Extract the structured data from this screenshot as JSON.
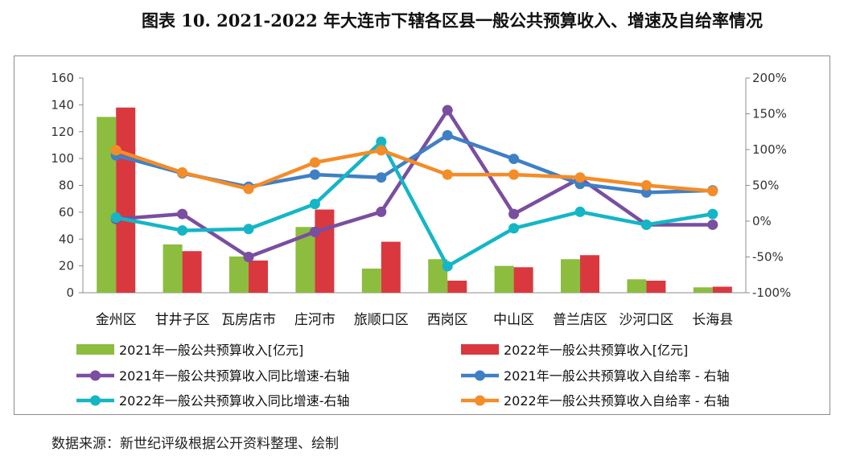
{
  "title": "图表 10. 2021-2022 年大连市下辖各区县一般公共预算收入、增速及自给率情况",
  "source": "数据来源：新世纪评级根据公开资料整理、绘制",
  "chart_data": {
    "type": "bar",
    "categories": [
      "金州区",
      "甘井子区",
      "瓦房店市",
      "庄河市",
      "旅顺口区",
      "西岗区",
      "中山区",
      "普兰店区",
      "沙河口区",
      "长海县"
    ],
    "y_left": {
      "min": 0,
      "max": 160,
      "ticks": [
        0,
        20,
        40,
        60,
        80,
        100,
        120,
        140,
        160
      ]
    },
    "y_right": {
      "min": -100,
      "max": 200,
      "ticks": [
        -100,
        -50,
        0,
        50,
        100,
        150,
        200
      ],
      "tick_labels": [
        "-100%",
        "-50%",
        "0%",
        "50%",
        "100%",
        "150%",
        "200%"
      ]
    },
    "grid": false,
    "legend_position": "bottom",
    "bar_series": [
      {
        "name": "2021年一般公共预算收入[亿元]",
        "color": "#8cbd3f",
        "values": [
          131,
          36,
          27,
          49,
          18,
          25,
          20,
          25,
          10,
          4
        ]
      },
      {
        "name": "2022年一般公共预算收入[亿元]",
        "color": "#d9383f",
        "values": [
          138,
          31,
          24,
          62,
          38,
          9,
          19,
          28,
          9,
          4.5
        ]
      }
    ],
    "line_series": [
      {
        "name": "2021年一般公共预算收入同比增速-右轴",
        "color": "#7a4ea0",
        "values": [
          3,
          10,
          -50,
          -15,
          13,
          155,
          10,
          60,
          -5,
          -5
        ]
      },
      {
        "name": "2021年一般公共预算收入自给率 - 右轴",
        "color": "#3f80c4",
        "values": [
          92,
          67,
          48,
          65,
          61,
          120,
          87,
          52,
          40,
          43
        ]
      },
      {
        "name": "2022年一般公共预算收入同比增速-右轴",
        "color": "#14b6c6",
        "values": [
          5,
          -13,
          -11,
          24,
          111,
          -63,
          -10,
          13,
          -5,
          10
        ]
      },
      {
        "name": "2022年一般公共预算收入自给率 - 右轴",
        "color": "#f48c28",
        "values": [
          99,
          68,
          45,
          82,
          99,
          65,
          65,
          61,
          50,
          42
        ]
      }
    ]
  }
}
